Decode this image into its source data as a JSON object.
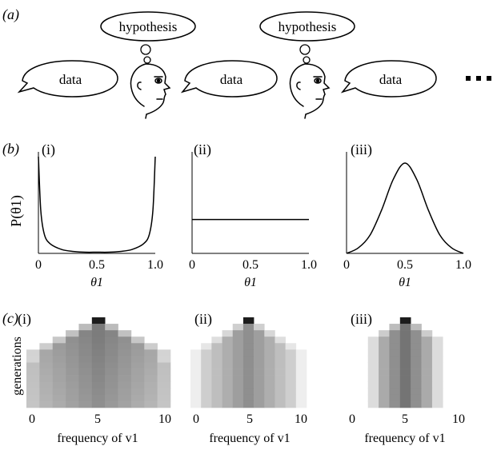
{
  "panel_a": {
    "label": "(a)",
    "sequence": [
      "data",
      "hypothesis",
      "data",
      "hypothesis",
      "data"
    ],
    "continuation": "..."
  },
  "panel_b": {
    "label": "(b)",
    "ylabel": "P(θ1)",
    "xlabel": "θ1",
    "subplots": [
      {
        "label": "(i)",
        "shape": "U-shaped"
      },
      {
        "label": "(ii)",
        "shape": "uniform"
      },
      {
        "label": "(iii)",
        "shape": "bell-shaped"
      }
    ]
  },
  "panel_c": {
    "label": "(c)",
    "ylabel": "generations",
    "xlabel": "frequency of v1",
    "subplots": [
      {
        "label": "(i)"
      },
      {
        "label": "(ii)"
      },
      {
        "label": "(iii)"
      }
    ]
  },
  "chart_data": [
    {
      "type": "line",
      "title": "(i)",
      "xlabel": "θ1",
      "ylabel": "P(θ1)",
      "xlim": [
        0,
        1
      ],
      "xticks": [
        "0",
        "0.5",
        "1.0"
      ],
      "x": [
        0,
        0.02,
        0.05,
        0.1,
        0.2,
        0.3,
        0.4,
        0.5,
        0.6,
        0.7,
        0.8,
        0.9,
        0.95,
        0.98,
        1.0
      ],
      "y": [
        1.0,
        0.45,
        0.2,
        0.1,
        0.04,
        0.02,
        0.005,
        0.0,
        0.005,
        0.02,
        0.04,
        0.1,
        0.2,
        0.45,
        1.0
      ]
    },
    {
      "type": "line",
      "title": "(ii)",
      "xlabel": "θ1",
      "xlim": [
        0,
        1
      ],
      "xticks": [
        "0",
        "0.5",
        "1.0"
      ],
      "x": [
        0,
        1
      ],
      "y": [
        0.35,
        0.35
      ]
    },
    {
      "type": "line",
      "title": "(iii)",
      "xlabel": "θ1",
      "xlim": [
        0,
        1
      ],
      "xticks": [
        "0",
        "0.5",
        "1.0"
      ],
      "x": [
        0,
        0.1,
        0.2,
        0.3,
        0.4,
        0.5,
        0.6,
        0.7,
        0.8,
        0.9,
        1.0
      ],
      "y": [
        0.0,
        0.06,
        0.2,
        0.48,
        0.82,
        1.0,
        0.82,
        0.48,
        0.2,
        0.06,
        0.0
      ]
    },
    {
      "type": "heatmap",
      "title": "(i)",
      "xlabel": "frequency of v1",
      "ylabel": "generations",
      "xticks": [
        "0",
        "5",
        "10"
      ],
      "x_range": [
        0,
        10
      ],
      "rows": 14,
      "initial_frequency": 5,
      "spread": "widening to all frequencies"
    },
    {
      "type": "heatmap",
      "title": "(ii)",
      "xlabel": "frequency of v1",
      "xticks": [
        "0",
        "5",
        "10"
      ],
      "x_range": [
        0,
        10
      ],
      "rows": 14,
      "initial_frequency": 5,
      "spread": "uniform across frequencies"
    },
    {
      "type": "heatmap",
      "title": "(iii)",
      "xlabel": "frequency of v1",
      "xticks": [
        "0",
        "5",
        "10"
      ],
      "x_range": [
        0,
        10
      ],
      "rows": 14,
      "initial_frequency": 5,
      "spread": "concentrated around 5"
    }
  ]
}
